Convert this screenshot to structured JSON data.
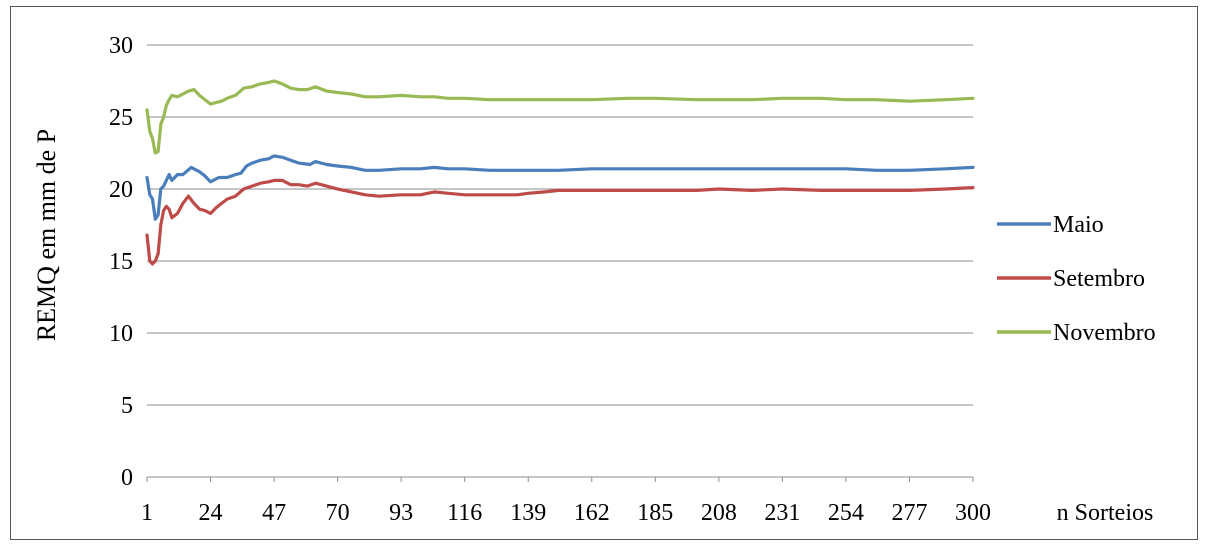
{
  "chart_data": {
    "type": "line",
    "title": "",
    "xlabel": "n Sorteios",
    "ylabel": "REMQ em mm de P",
    "xlim": [
      1,
      300
    ],
    "ylim": [
      0,
      30
    ],
    "y_ticks": [
      "0",
      "5",
      "10",
      "15",
      "20",
      "25",
      "30"
    ],
    "x_ticks": [
      1,
      24,
      47,
      70,
      93,
      116,
      139,
      162,
      185,
      208,
      231,
      254,
      277,
      300
    ],
    "grid": "horizontal",
    "legend": "right",
    "series": [
      {
        "name": "Maio",
        "color": "#4a7ebb",
        "points": [
          [
            1,
            20.8
          ],
          [
            2,
            19.6
          ],
          [
            3,
            19.3
          ],
          [
            4,
            17.9
          ],
          [
            5,
            18.2
          ],
          [
            6,
            20.0
          ],
          [
            7,
            20.2
          ],
          [
            9,
            21.0
          ],
          [
            10,
            20.6
          ],
          [
            12,
            21.0
          ],
          [
            14,
            21.0
          ],
          [
            17,
            21.5
          ],
          [
            20,
            21.2
          ],
          [
            22,
            20.9
          ],
          [
            24,
            20.5
          ],
          [
            27,
            20.8
          ],
          [
            30,
            20.8
          ],
          [
            33,
            21.0
          ],
          [
            35,
            21.1
          ],
          [
            37,
            21.6
          ],
          [
            39,
            21.8
          ],
          [
            42,
            22.0
          ],
          [
            45,
            22.1
          ],
          [
            47,
            22.3
          ],
          [
            50,
            22.2
          ],
          [
            53,
            22.0
          ],
          [
            56,
            21.8
          ],
          [
            60,
            21.7
          ],
          [
            62,
            21.9
          ],
          [
            66,
            21.7
          ],
          [
            70,
            21.6
          ],
          [
            75,
            21.5
          ],
          [
            80,
            21.3
          ],
          [
            85,
            21.3
          ],
          [
            93,
            21.4
          ],
          [
            100,
            21.4
          ],
          [
            105,
            21.5
          ],
          [
            110,
            21.4
          ],
          [
            116,
            21.4
          ],
          [
            125,
            21.3
          ],
          [
            139,
            21.3
          ],
          [
            150,
            21.3
          ],
          [
            162,
            21.4
          ],
          [
            175,
            21.4
          ],
          [
            185,
            21.4
          ],
          [
            200,
            21.4
          ],
          [
            208,
            21.4
          ],
          [
            220,
            21.4
          ],
          [
            231,
            21.4
          ],
          [
            245,
            21.4
          ],
          [
            254,
            21.4
          ],
          [
            265,
            21.3
          ],
          [
            277,
            21.3
          ],
          [
            290,
            21.4
          ],
          [
            300,
            21.5
          ]
        ]
      },
      {
        "name": "Setembro",
        "color": "#be4b48",
        "points": [
          [
            1,
            16.8
          ],
          [
            2,
            15.0
          ],
          [
            3,
            14.8
          ],
          [
            4,
            15.0
          ],
          [
            5,
            15.5
          ],
          [
            6,
            17.5
          ],
          [
            7,
            18.5
          ],
          [
            8,
            18.8
          ],
          [
            9,
            18.6
          ],
          [
            10,
            18.0
          ],
          [
            12,
            18.3
          ],
          [
            14,
            19.0
          ],
          [
            16,
            19.5
          ],
          [
            18,
            19.0
          ],
          [
            20,
            18.6
          ],
          [
            22,
            18.5
          ],
          [
            24,
            18.3
          ],
          [
            26,
            18.7
          ],
          [
            28,
            19.0
          ],
          [
            30,
            19.3
          ],
          [
            33,
            19.5
          ],
          [
            36,
            20.0
          ],
          [
            39,
            20.2
          ],
          [
            42,
            20.4
          ],
          [
            45,
            20.5
          ],
          [
            47,
            20.6
          ],
          [
            50,
            20.6
          ],
          [
            53,
            20.3
          ],
          [
            56,
            20.3
          ],
          [
            59,
            20.2
          ],
          [
            62,
            20.4
          ],
          [
            66,
            20.2
          ],
          [
            70,
            20.0
          ],
          [
            75,
            19.8
          ],
          [
            80,
            19.6
          ],
          [
            85,
            19.5
          ],
          [
            93,
            19.6
          ],
          [
            100,
            19.6
          ],
          [
            105,
            19.8
          ],
          [
            110,
            19.7
          ],
          [
            116,
            19.6
          ],
          [
            125,
            19.6
          ],
          [
            135,
            19.6
          ],
          [
            139,
            19.7
          ],
          [
            145,
            19.8
          ],
          [
            150,
            19.9
          ],
          [
            162,
            19.9
          ],
          [
            170,
            19.9
          ],
          [
            185,
            19.9
          ],
          [
            200,
            19.9
          ],
          [
            208,
            20.0
          ],
          [
            220,
            19.9
          ],
          [
            231,
            20.0
          ],
          [
            245,
            19.9
          ],
          [
            254,
            19.9
          ],
          [
            265,
            19.9
          ],
          [
            277,
            19.9
          ],
          [
            290,
            20.0
          ],
          [
            300,
            20.1
          ]
        ]
      },
      {
        "name": "Novembro",
        "color": "#98b954",
        "points": [
          [
            1,
            25.5
          ],
          [
            2,
            24.0
          ],
          [
            3,
            23.5
          ],
          [
            4,
            22.5
          ],
          [
            5,
            22.6
          ],
          [
            6,
            24.5
          ],
          [
            7,
            25.0
          ],
          [
            8,
            25.8
          ],
          [
            9,
            26.2
          ],
          [
            10,
            26.5
          ],
          [
            12,
            26.4
          ],
          [
            14,
            26.6
          ],
          [
            16,
            26.8
          ],
          [
            18,
            26.9
          ],
          [
            20,
            26.5
          ],
          [
            22,
            26.2
          ],
          [
            24,
            25.9
          ],
          [
            26,
            26.0
          ],
          [
            28,
            26.1
          ],
          [
            30,
            26.3
          ],
          [
            33,
            26.5
          ],
          [
            36,
            27.0
          ],
          [
            39,
            27.1
          ],
          [
            42,
            27.3
          ],
          [
            45,
            27.4
          ],
          [
            47,
            27.5
          ],
          [
            50,
            27.3
          ],
          [
            53,
            27.0
          ],
          [
            56,
            26.9
          ],
          [
            59,
            26.9
          ],
          [
            62,
            27.1
          ],
          [
            66,
            26.8
          ],
          [
            70,
            26.7
          ],
          [
            75,
            26.6
          ],
          [
            80,
            26.4
          ],
          [
            85,
            26.4
          ],
          [
            93,
            26.5
          ],
          [
            100,
            26.4
          ],
          [
            105,
            26.4
          ],
          [
            110,
            26.3
          ],
          [
            116,
            26.3
          ],
          [
            125,
            26.2
          ],
          [
            139,
            26.2
          ],
          [
            150,
            26.2
          ],
          [
            162,
            26.2
          ],
          [
            175,
            26.3
          ],
          [
            185,
            26.3
          ],
          [
            200,
            26.2
          ],
          [
            208,
            26.2
          ],
          [
            220,
            26.2
          ],
          [
            231,
            26.3
          ],
          [
            245,
            26.3
          ],
          [
            254,
            26.2
          ],
          [
            265,
            26.2
          ],
          [
            277,
            26.1
          ],
          [
            290,
            26.2
          ],
          [
            300,
            26.3
          ]
        ]
      }
    ]
  }
}
